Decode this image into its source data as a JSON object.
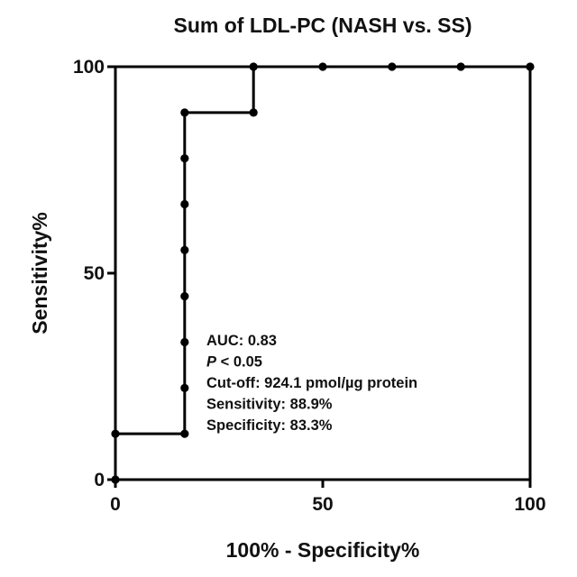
{
  "chart_data": {
    "type": "line",
    "title": "Sum of LDL-PC (NASH vs. SS)",
    "xlabel": "100% - Specificity%",
    "ylabel": "Sensitivity%",
    "xlim": [
      0,
      100
    ],
    "ylim": [
      0,
      100
    ],
    "xticks": [
      "0",
      "50",
      "100"
    ],
    "yticks": [
      "0",
      "50",
      "100"
    ],
    "grid": false,
    "legend": "none",
    "series": [
      {
        "line_color": "#000000",
        "marker": "filled-circle",
        "x": [
          0,
          0,
          16.7,
          16.7,
          16.7,
          16.7,
          16.7,
          16.7,
          16.7,
          16.7,
          33.3,
          33.3,
          50,
          66.7,
          83.3,
          100
        ],
        "y": [
          0,
          11.1,
          11.1,
          22.2,
          33.3,
          44.4,
          55.6,
          66.7,
          77.8,
          88.9,
          88.9,
          100,
          100,
          100,
          100,
          100
        ]
      }
    ],
    "annotations": [
      {
        "label": "AUC",
        "sep": ": ",
        "value": "0.83"
      },
      {
        "label": "P",
        "sep": " < ",
        "value": "0.05",
        "italic_label": true
      },
      {
        "label": "Cut-off",
        "sep": ": ",
        "value": "924.1 pmol/µg protein"
      },
      {
        "label": "Sensitivity",
        "sep": ": ",
        "value": "88.9%"
      },
      {
        "label": "Specificity",
        "sep": ": ",
        "value": "83.3%"
      }
    ]
  }
}
